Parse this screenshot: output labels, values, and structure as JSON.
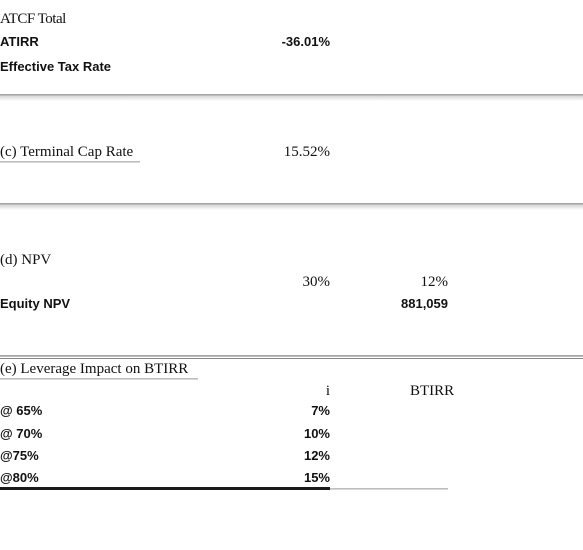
{
  "section_b": {
    "atcf_total_label": "ATCF Total",
    "atirr_label": "ATIRR",
    "atirr_value": "-36.01%",
    "effective_tax_rate_label": "Effective Tax Rate"
  },
  "section_c": {
    "heading": "(c) Terminal Cap Rate",
    "value": "15.52%"
  },
  "section_d": {
    "heading": "(d) NPV",
    "rate_1": "30%",
    "rate_2": "12%",
    "equity_npv_label": "Equity NPV",
    "equity_npv_value": "881,059"
  },
  "section_e": {
    "heading": "(e) Leverage Impact on BTIRR",
    "col_i_header": "i",
    "col_btirr_header": "BTIRR",
    "rows": [
      {
        "label": "@ 65%",
        "i": "7%"
      },
      {
        "label": "@ 70%",
        "i": "10%"
      },
      {
        "label": "@75%",
        "i": "12%"
      },
      {
        "label": "@80%",
        "i": "15%"
      }
    ]
  }
}
